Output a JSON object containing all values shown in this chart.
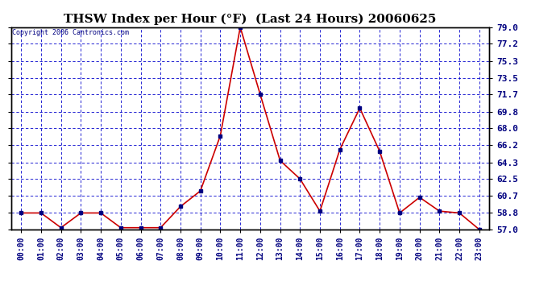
{
  "title": "THSW Index per Hour (°F)  (Last 24 Hours) 20060625",
  "copyright": "Copyright 2006 Cantronics.com",
  "hours": [
    "00:00",
    "01:00",
    "02:00",
    "03:00",
    "04:00",
    "05:00",
    "06:00",
    "07:00",
    "08:00",
    "09:00",
    "10:00",
    "11:00",
    "12:00",
    "13:00",
    "14:00",
    "15:00",
    "16:00",
    "17:00",
    "18:00",
    "19:00",
    "20:00",
    "21:00",
    "22:00",
    "23:00"
  ],
  "values": [
    58.8,
    58.8,
    57.2,
    58.8,
    58.8,
    57.2,
    57.2,
    57.2,
    59.5,
    61.2,
    67.2,
    79.0,
    71.7,
    64.5,
    62.5,
    59.0,
    65.7,
    70.2,
    65.5,
    58.8,
    60.5,
    59.0,
    58.8,
    57.0
  ],
  "yticks": [
    57.0,
    58.8,
    60.7,
    62.5,
    64.3,
    66.2,
    68.0,
    69.8,
    71.7,
    73.5,
    75.3,
    77.2,
    79.0
  ],
  "ymin": 57.0,
  "ymax": 79.0,
  "bg_color": "#ffffff",
  "plot_bg_color": "#ffffff",
  "line_color": "#cc0000",
  "marker_color": "#000080",
  "grid_color": "#0000cc",
  "title_color": "#000000",
  "border_color": "#000000",
  "title_fontsize": 11,
  "tick_fontsize": 8,
  "xlabel_fontsize": 7,
  "copyright_fontsize": 6
}
